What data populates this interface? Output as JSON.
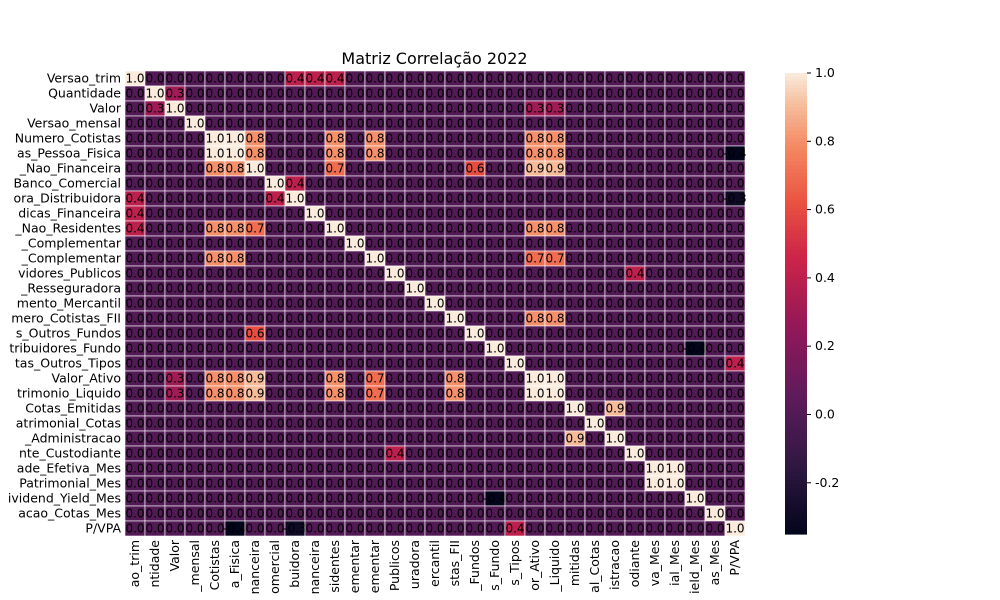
{
  "chart_data": {
    "type": "heatmap",
    "title": "Matriz Correlação 2022",
    "row_labels": [
      "Versao_trim",
      "Quantidade",
      "Valor",
      "Versao_mensal",
      "Numero_Cotistas",
      "as_Pessoa_Fisica",
      "_Nao_Financeira",
      "Banco_Comercial",
      "ora_Distribuidora",
      "dicas_Financeira",
      "_Nao_Residentes",
      "_Complementar",
      "_Complementar",
      "vidores_Publicos",
      "_Resseguradora",
      "mento_Mercantil",
      "mero_Cotistas_FII",
      "s_Outros_Fundos",
      "tribuidores_Fundo",
      "tas_Outros_Tipos",
      "Valor_Ativo",
      "trimonio_Liquido",
      "Cotas_Emitidas",
      "atrimonial_Cotas",
      "_Administracao",
      "nte_Custodiante",
      "ade_Efetiva_Mes",
      "Patrimonial_Mes",
      "ividend_Yield_Mes",
      "acao_Cotas_Mes",
      "P/VPA"
    ],
    "col_labels": [
      "ao_trim",
      "ntidade",
      "Valor",
      "_mensal",
      "Cotistas",
      "a_Fisica",
      "nanceira",
      "omercial",
      "buidora",
      "nanceira",
      "sidentes",
      "ementar",
      "ementar",
      "Publicos",
      "uradora",
      "ercantil",
      "stas_FII",
      "_Fundos",
      "s_Fundo",
      "s_Tipos",
      "or_Ativo",
      "_Liquido",
      "mitidas",
      "al_Cotas",
      "istracao",
      "odiante",
      "va_Mes",
      "ial_Mes",
      "ield_Mes",
      "as_Mes",
      "P/VPA"
    ],
    "colorbar_ticks": [
      1.0,
      0.8,
      0.6,
      0.4,
      0.2,
      0.0,
      -0.2
    ],
    "range": [
      -0.35,
      1.0
    ],
    "colormap": "rocket",
    "highlighted_values": [
      {
        "row": 0,
        "col": 0,
        "value": 1.0
      },
      {
        "row": 1,
        "col": 1,
        "value": 1.0
      },
      {
        "row": 2,
        "col": 2,
        "value": 1.0
      },
      {
        "row": 3,
        "col": 3,
        "value": 1.0
      },
      {
        "row": 4,
        "col": 4,
        "value": 1.0
      },
      {
        "row": 5,
        "col": 5,
        "value": 1.0
      },
      {
        "row": 6,
        "col": 6,
        "value": 1.0
      },
      {
        "row": 7,
        "col": 7,
        "value": 1.0
      },
      {
        "row": 8,
        "col": 8,
        "value": 1.0
      },
      {
        "row": 9,
        "col": 9,
        "value": 1.0
      },
      {
        "row": 10,
        "col": 10,
        "value": 1.0
      },
      {
        "row": 11,
        "col": 11,
        "value": 1.0
      },
      {
        "row": 12,
        "col": 12,
        "value": 1.0
      },
      {
        "row": 13,
        "col": 13,
        "value": 1.0
      },
      {
        "row": 14,
        "col": 14,
        "value": 1.0
      },
      {
        "row": 15,
        "col": 15,
        "value": 1.0
      },
      {
        "row": 16,
        "col": 16,
        "value": 1.0
      },
      {
        "row": 17,
        "col": 17,
        "value": 1.0
      },
      {
        "row": 18,
        "col": 18,
        "value": 1.0
      },
      {
        "row": 19,
        "col": 19,
        "value": 1.0
      },
      {
        "row": 20,
        "col": 20,
        "value": 1.0
      },
      {
        "row": 21,
        "col": 21,
        "value": 1.0
      },
      {
        "row": 22,
        "col": 22,
        "value": 1.0
      },
      {
        "row": 23,
        "col": 23,
        "value": 1.0
      },
      {
        "row": 24,
        "col": 24,
        "value": 1.0
      },
      {
        "row": 25,
        "col": 25,
        "value": 1.0
      },
      {
        "row": 26,
        "col": 26,
        "value": 1.0
      },
      {
        "row": 27,
        "col": 27,
        "value": 1.0
      },
      {
        "row": 28,
        "col": 28,
        "value": 1.0
      },
      {
        "row": 29,
        "col": 29,
        "value": 1.0
      },
      {
        "row": 30,
        "col": 30,
        "value": 1.0
      },
      {
        "row": 4,
        "col": 5,
        "value": 1.0
      },
      {
        "row": 5,
        "col": 4,
        "value": 1.0
      },
      {
        "row": 4,
        "col": 6,
        "value": 0.8
      },
      {
        "row": 6,
        "col": 4,
        "value": 0.8
      },
      {
        "row": 5,
        "col": 6,
        "value": 0.8
      },
      {
        "row": 6,
        "col": 5,
        "value": 0.8
      },
      {
        "row": 4,
        "col": 20,
        "value": 0.8
      },
      {
        "row": 20,
        "col": 4,
        "value": 0.8
      },
      {
        "row": 4,
        "col": 21,
        "value": 0.8
      },
      {
        "row": 21,
        "col": 4,
        "value": 0.8
      },
      {
        "row": 5,
        "col": 20,
        "value": 0.8
      },
      {
        "row": 20,
        "col": 5,
        "value": 0.8
      },
      {
        "row": 5,
        "col": 21,
        "value": 0.8
      },
      {
        "row": 21,
        "col": 5,
        "value": 0.8
      },
      {
        "row": 6,
        "col": 20,
        "value": 0.9
      },
      {
        "row": 20,
        "col": 6,
        "value": 0.9
      },
      {
        "row": 6,
        "col": 21,
        "value": 0.9
      },
      {
        "row": 21,
        "col": 6,
        "value": 0.9
      },
      {
        "row": 20,
        "col": 21,
        "value": 1.0
      },
      {
        "row": 21,
        "col": 20,
        "value": 1.0
      },
      {
        "row": 10,
        "col": 20,
        "value": 0.8
      },
      {
        "row": 20,
        "col": 10,
        "value": 0.8
      },
      {
        "row": 10,
        "col": 21,
        "value": 0.8
      },
      {
        "row": 21,
        "col": 10,
        "value": 0.8
      },
      {
        "row": 4,
        "col": 10,
        "value": 0.8
      },
      {
        "row": 10,
        "col": 4,
        "value": 0.8
      },
      {
        "row": 5,
        "col": 10,
        "value": 0.8
      },
      {
        "row": 10,
        "col": 5,
        "value": 0.8
      },
      {
        "row": 6,
        "col": 10,
        "value": 0.7
      },
      {
        "row": 10,
        "col": 6,
        "value": 0.7
      },
      {
        "row": 4,
        "col": 12,
        "value": 0.8
      },
      {
        "row": 12,
        "col": 4,
        "value": 0.8
      },
      {
        "row": 5,
        "col": 12,
        "value": 0.8
      },
      {
        "row": 12,
        "col": 5,
        "value": 0.8
      },
      {
        "row": 12,
        "col": 20,
        "value": 0.7
      },
      {
        "row": 20,
        "col": 12,
        "value": 0.7
      },
      {
        "row": 12,
        "col": 21,
        "value": 0.7
      },
      {
        "row": 21,
        "col": 12,
        "value": 0.7
      },
      {
        "row": 16,
        "col": 20,
        "value": 0.8
      },
      {
        "row": 20,
        "col": 16,
        "value": 0.8
      },
      {
        "row": 16,
        "col": 21,
        "value": 0.8
      },
      {
        "row": 21,
        "col": 16,
        "value": 0.8
      },
      {
        "row": 22,
        "col": 24,
        "value": 0.9
      },
      {
        "row": 24,
        "col": 22,
        "value": 0.9
      },
      {
        "row": 26,
        "col": 27,
        "value": 1.0
      },
      {
        "row": 27,
        "col": 26,
        "value": 1.0
      },
      {
        "row": 17,
        "col": 6,
        "value": 0.6
      },
      {
        "row": 6,
        "col": 17,
        "value": 0.6
      },
      {
        "row": 18,
        "col": 28,
        "value": -0.4
      },
      {
        "row": 28,
        "col": 18,
        "value": -0.4
      },
      {
        "row": 5,
        "col": 30,
        "value": -0.4
      },
      {
        "row": 30,
        "col": 5,
        "value": -0.4
      },
      {
        "row": 8,
        "col": 30,
        "value": -0.3
      },
      {
        "row": 30,
        "col": 8,
        "value": -0.3
      },
      {
        "row": 19,
        "col": 30,
        "value": 0.4
      },
      {
        "row": 30,
        "col": 19,
        "value": 0.4
      },
      {
        "row": 0,
        "col": 8,
        "value": 0.4
      },
      {
        "row": 8,
        "col": 0,
        "value": 0.4
      },
      {
        "row": 0,
        "col": 10,
        "value": 0.4
      },
      {
        "row": 10,
        "col": 0,
        "value": 0.4
      },
      {
        "row": 9,
        "col": 0,
        "value": 0.4
      },
      {
        "row": 0,
        "col": 9,
        "value": 0.4
      },
      {
        "row": 13,
        "col": 25,
        "value": 0.4
      },
      {
        "row": 25,
        "col": 13,
        "value": 0.4
      },
      {
        "row": 7,
        "col": 8,
        "value": 0.4
      },
      {
        "row": 8,
        "col": 7,
        "value": 0.4
      },
      {
        "row": 2,
        "col": 20,
        "value": 0.3
      },
      {
        "row": 20,
        "col": 2,
        "value": 0.3
      },
      {
        "row": 2,
        "col": 21,
        "value": 0.3
      },
      {
        "row": 21,
        "col": 2,
        "value": 0.3
      },
      {
        "row": 1,
        "col": 2,
        "value": 0.3
      },
      {
        "row": 2,
        "col": 1,
        "value": 0.3
      }
    ]
  }
}
